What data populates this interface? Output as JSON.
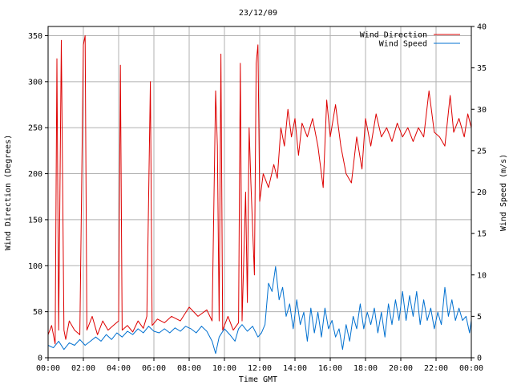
{
  "chart_data": {
    "type": "line",
    "title": "23/12/09",
    "xlabel": "Time GMT",
    "ylabel_left": "Wind Direction (Degrees)",
    "ylabel_right": "Wind Speed (m/s)",
    "x_range_hours": [
      0,
      24
    ],
    "x_ticks": [
      "00:00",
      "02:00",
      "04:00",
      "06:00",
      "08:00",
      "10:00",
      "12:00",
      "14:00",
      "16:00",
      "18:00",
      "20:00",
      "22:00",
      "00:00"
    ],
    "ylim_left": [
      0,
      360
    ],
    "yticks_left": [
      0,
      50,
      100,
      150,
      200,
      250,
      300,
      350
    ],
    "ylim_right": [
      0,
      40
    ],
    "yticks_right": [
      0,
      5,
      10,
      15,
      20,
      25,
      30,
      35,
      40
    ],
    "grid": true,
    "legend_position": "top-right",
    "series": [
      {
        "name": "Wind Direction",
        "axis": "left",
        "color": "#dd0000",
        "points": [
          [
            0.0,
            25
          ],
          [
            0.2,
            35
          ],
          [
            0.4,
            15
          ],
          [
            0.5,
            325
          ],
          [
            0.6,
            30
          ],
          [
            0.75,
            345
          ],
          [
            0.9,
            30
          ],
          [
            1.0,
            20
          ],
          [
            1.2,
            40
          ],
          [
            1.5,
            30
          ],
          [
            1.8,
            25
          ],
          [
            2.0,
            340
          ],
          [
            2.1,
            350
          ],
          [
            2.2,
            30
          ],
          [
            2.5,
            45
          ],
          [
            2.8,
            25
          ],
          [
            3.1,
            40
          ],
          [
            3.4,
            30
          ],
          [
            3.7,
            35
          ],
          [
            4.0,
            40
          ],
          [
            4.1,
            318
          ],
          [
            4.2,
            30
          ],
          [
            4.5,
            35
          ],
          [
            4.8,
            28
          ],
          [
            5.1,
            40
          ],
          [
            5.4,
            32
          ],
          [
            5.6,
            45
          ],
          [
            5.8,
            300
          ],
          [
            5.9,
            35
          ],
          [
            6.2,
            42
          ],
          [
            6.6,
            38
          ],
          [
            7.0,
            45
          ],
          [
            7.5,
            40
          ],
          [
            8.0,
            55
          ],
          [
            8.5,
            45
          ],
          [
            9.0,
            52
          ],
          [
            9.3,
            40
          ],
          [
            9.5,
            290
          ],
          [
            9.6,
            230
          ],
          [
            9.7,
            40
          ],
          [
            9.8,
            330
          ],
          [
            9.9,
            30
          ],
          [
            10.2,
            45
          ],
          [
            10.5,
            30
          ],
          [
            10.8,
            38
          ],
          [
            10.9,
            320
          ],
          [
            11.0,
            40
          ],
          [
            11.2,
            180
          ],
          [
            11.3,
            60
          ],
          [
            11.4,
            250
          ],
          [
            11.5,
            190
          ],
          [
            11.7,
            90
          ],
          [
            11.8,
            320
          ],
          [
            11.9,
            340
          ],
          [
            12.0,
            170
          ],
          [
            12.2,
            200
          ],
          [
            12.5,
            185
          ],
          [
            12.8,
            210
          ],
          [
            13.0,
            195
          ],
          [
            13.2,
            250
          ],
          [
            13.4,
            230
          ],
          [
            13.6,
            270
          ],
          [
            13.8,
            240
          ],
          [
            14.0,
            260
          ],
          [
            14.2,
            220
          ],
          [
            14.4,
            255
          ],
          [
            14.7,
            240
          ],
          [
            15.0,
            260
          ],
          [
            15.3,
            230
          ],
          [
            15.6,
            185
          ],
          [
            15.8,
            280
          ],
          [
            16.0,
            240
          ],
          [
            16.3,
            275
          ],
          [
            16.6,
            230
          ],
          [
            16.9,
            200
          ],
          [
            17.2,
            190
          ],
          [
            17.5,
            240
          ],
          [
            17.8,
            205
          ],
          [
            18.0,
            260
          ],
          [
            18.3,
            230
          ],
          [
            18.6,
            265
          ],
          [
            18.9,
            240
          ],
          [
            19.2,
            250
          ],
          [
            19.5,
            235
          ],
          [
            19.8,
            255
          ],
          [
            20.1,
            240
          ],
          [
            20.4,
            250
          ],
          [
            20.7,
            235
          ],
          [
            21.0,
            250
          ],
          [
            21.3,
            240
          ],
          [
            21.6,
            290
          ],
          [
            21.9,
            245
          ],
          [
            22.2,
            240
          ],
          [
            22.5,
            230
          ],
          [
            22.8,
            285
          ],
          [
            23.0,
            245
          ],
          [
            23.3,
            260
          ],
          [
            23.6,
            240
          ],
          [
            23.8,
            265
          ],
          [
            24.0,
            250
          ]
        ]
      },
      {
        "name": "Wind Speed",
        "axis": "right",
        "color": "#0070d0",
        "points": [
          [
            0.0,
            1.5
          ],
          [
            0.3,
            1.2
          ],
          [
            0.6,
            2.0
          ],
          [
            0.9,
            1.0
          ],
          [
            1.2,
            1.8
          ],
          [
            1.5,
            1.5
          ],
          [
            1.8,
            2.2
          ],
          [
            2.1,
            1.5
          ],
          [
            2.4,
            2.0
          ],
          [
            2.7,
            2.5
          ],
          [
            3.0,
            2.0
          ],
          [
            3.3,
            2.8
          ],
          [
            3.6,
            2.2
          ],
          [
            3.9,
            3.0
          ],
          [
            4.2,
            2.5
          ],
          [
            4.5,
            3.2
          ],
          [
            4.8,
            2.8
          ],
          [
            5.1,
            3.5
          ],
          [
            5.4,
            3.0
          ],
          [
            5.7,
            3.8
          ],
          [
            6.0,
            3.2
          ],
          [
            6.3,
            3.0
          ],
          [
            6.6,
            3.5
          ],
          [
            6.9,
            3.0
          ],
          [
            7.2,
            3.6
          ],
          [
            7.5,
            3.2
          ],
          [
            7.8,
            3.8
          ],
          [
            8.1,
            3.5
          ],
          [
            8.4,
            3.0
          ],
          [
            8.7,
            3.8
          ],
          [
            9.0,
            3.2
          ],
          [
            9.3,
            2.0
          ],
          [
            9.5,
            0.5
          ],
          [
            9.7,
            2.5
          ],
          [
            10.0,
            3.5
          ],
          [
            10.3,
            2.8
          ],
          [
            10.6,
            2.0
          ],
          [
            10.8,
            3.5
          ],
          [
            11.0,
            4.0
          ],
          [
            11.3,
            3.2
          ],
          [
            11.6,
            3.8
          ],
          [
            11.9,
            2.5
          ],
          [
            12.1,
            3.0
          ],
          [
            12.3,
            4.0
          ],
          [
            12.5,
            9.0
          ],
          [
            12.7,
            8.0
          ],
          [
            12.9,
            11.0
          ],
          [
            13.1,
            7.0
          ],
          [
            13.3,
            8.5
          ],
          [
            13.5,
            5.0
          ],
          [
            13.7,
            6.5
          ],
          [
            13.9,
            3.5
          ],
          [
            14.1,
            7.0
          ],
          [
            14.3,
            4.0
          ],
          [
            14.5,
            5.5
          ],
          [
            14.7,
            2.0
          ],
          [
            14.9,
            6.0
          ],
          [
            15.1,
            3.0
          ],
          [
            15.3,
            5.5
          ],
          [
            15.5,
            2.5
          ],
          [
            15.7,
            6.0
          ],
          [
            15.9,
            3.5
          ],
          [
            16.1,
            4.5
          ],
          [
            16.3,
            2.5
          ],
          [
            16.5,
            3.5
          ],
          [
            16.7,
            1.0
          ],
          [
            16.9,
            4.0
          ],
          [
            17.1,
            2.0
          ],
          [
            17.3,
            5.0
          ],
          [
            17.5,
            3.5
          ],
          [
            17.7,
            6.5
          ],
          [
            17.9,
            3.5
          ],
          [
            18.1,
            5.5
          ],
          [
            18.3,
            4.0
          ],
          [
            18.5,
            6.0
          ],
          [
            18.7,
            3.0
          ],
          [
            18.9,
            5.5
          ],
          [
            19.1,
            2.5
          ],
          [
            19.3,
            6.5
          ],
          [
            19.5,
            4.0
          ],
          [
            19.7,
            7.0
          ],
          [
            19.9,
            4.5
          ],
          [
            20.1,
            8.0
          ],
          [
            20.3,
            4.5
          ],
          [
            20.5,
            7.5
          ],
          [
            20.7,
            5.0
          ],
          [
            20.9,
            8.0
          ],
          [
            21.1,
            4.0
          ],
          [
            21.3,
            7.0
          ],
          [
            21.5,
            4.5
          ],
          [
            21.7,
            6.0
          ],
          [
            21.9,
            3.5
          ],
          [
            22.1,
            5.5
          ],
          [
            22.3,
            4.0
          ],
          [
            22.5,
            8.5
          ],
          [
            22.7,
            5.0
          ],
          [
            22.9,
            7.0
          ],
          [
            23.1,
            4.5
          ],
          [
            23.3,
            6.0
          ],
          [
            23.5,
            4.5
          ],
          [
            23.7,
            5.0
          ],
          [
            23.9,
            3.0
          ],
          [
            24.0,
            4.5
          ]
        ]
      }
    ]
  }
}
